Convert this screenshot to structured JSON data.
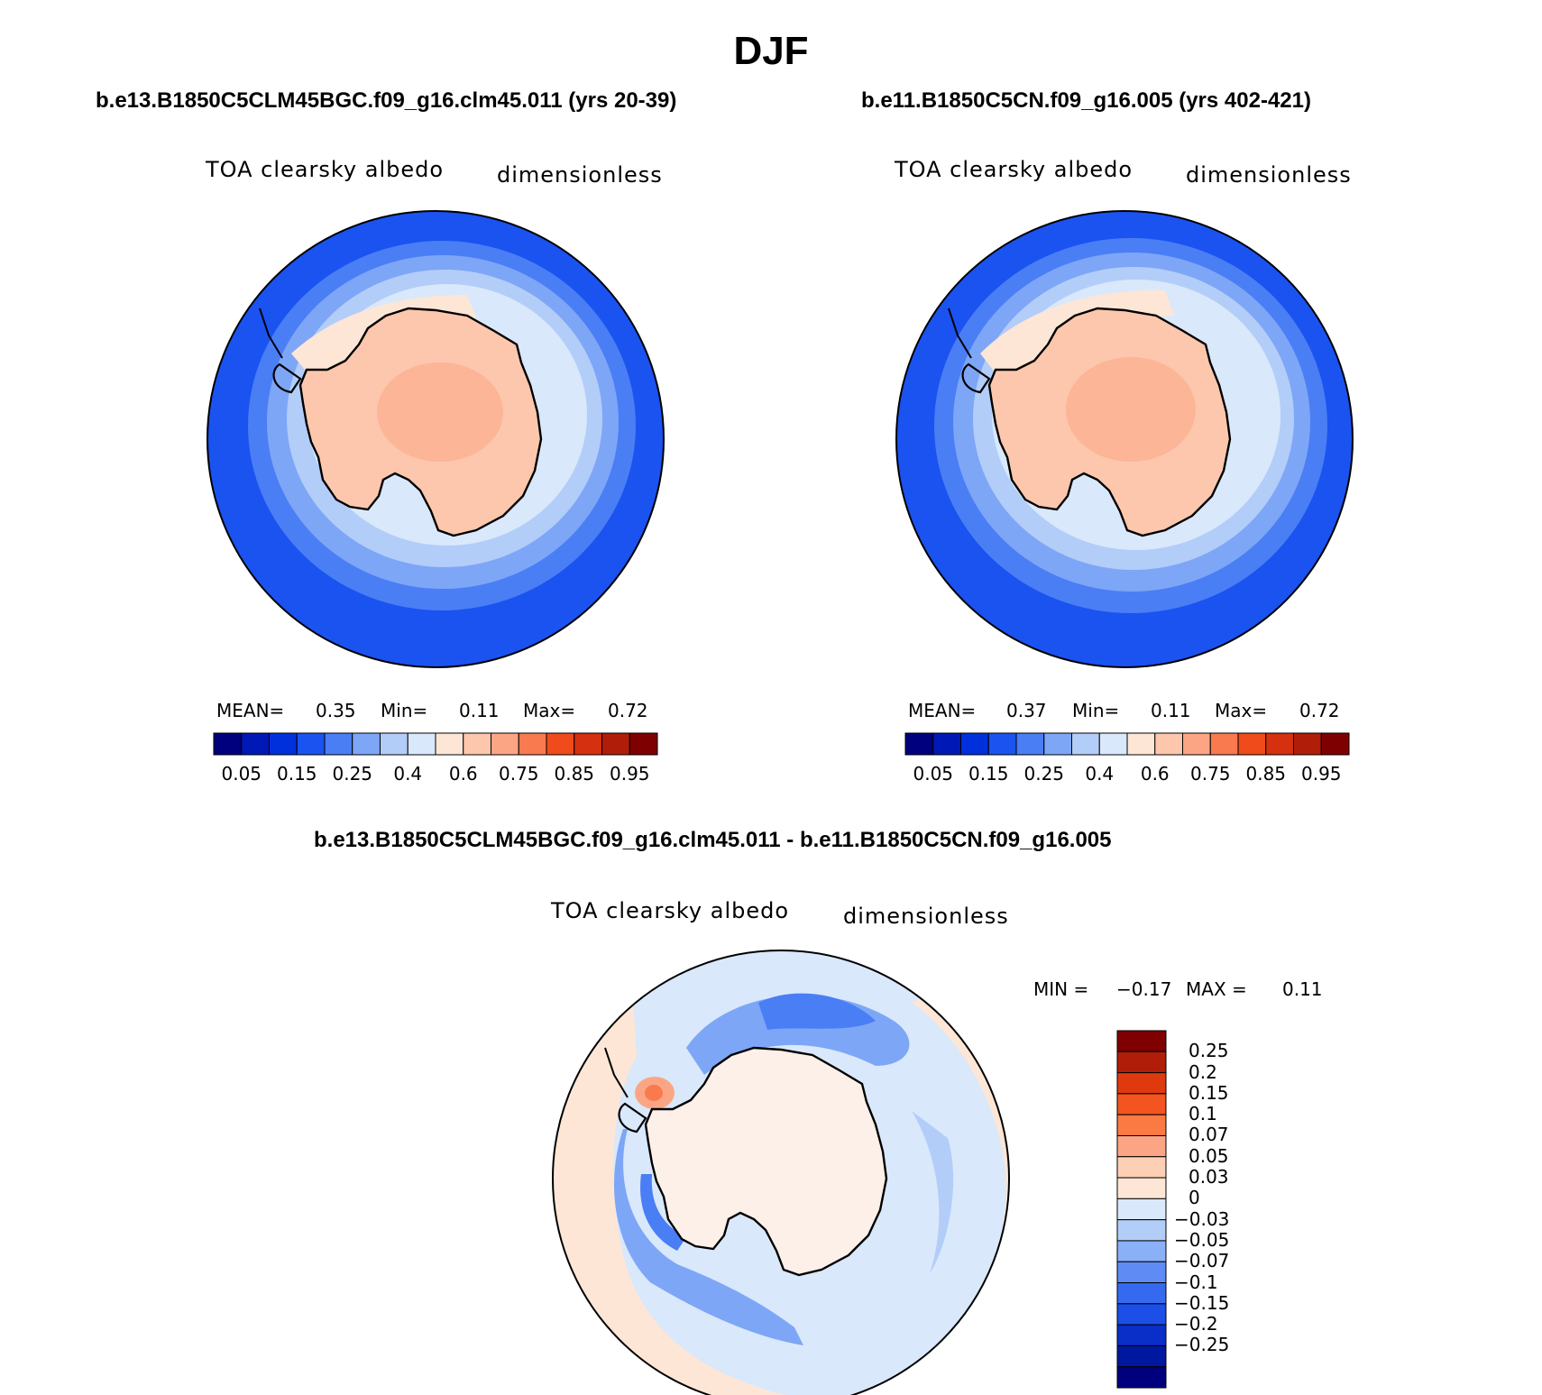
{
  "main_title": "DJF",
  "panels": [
    {
      "case_title": "b.e13.B1850C5CLM45BGC.f09_g16.clm45.011 (yrs 20-39)",
      "variable": "TOA clearsky albedo",
      "units": "dimensionless",
      "mean_label": "MEAN=",
      "mean": "0.35",
      "min_label": "Min=",
      "min": "0.11",
      "max_label": "Max=",
      "max": "0.72"
    },
    {
      "case_title": "b.e11.B1850C5CN.f09_g16.005 (yrs 402-421)",
      "variable": "TOA clearsky albedo",
      "units": "dimensionless",
      "mean_label": "MEAN=",
      "mean": "0.37",
      "min_label": "Min=",
      "min": "0.11",
      "max_label": "Max=",
      "max": "0.72"
    }
  ],
  "diff_panel": {
    "title": "b.e13.B1850C5CLM45BGC.f09_g16.clm45.011 - b.e11.B1850C5CN.f09_g16.005",
    "variable": "TOA clearsky albedo",
    "units": "dimensionless",
    "min_label": "MIN =",
    "min": "−0.17",
    "max_label": "MAX =",
    "max": "0.11"
  },
  "abs_colorbar": {
    "colors": [
      "#00007f",
      "#0018b5",
      "#0030dc",
      "#1a53f0",
      "#4a7ef5",
      "#7ea6f7",
      "#b3cdf9",
      "#d9e8fb",
      "#fde6d6",
      "#fcc7ad",
      "#fba585",
      "#f97a4f",
      "#f04b1b",
      "#d53010",
      "#b01e0a",
      "#7f0000"
    ],
    "tick_labels": [
      "0.05",
      "0.15",
      "0.25",
      "0.4",
      "0.6",
      "0.75",
      "0.85",
      "0.95"
    ]
  },
  "diff_colorbar": {
    "colors": [
      "#7f0000",
      "#b01e0a",
      "#df3a0e",
      "#f35420",
      "#fb7a44",
      "#fca584",
      "#fdcfb5",
      "#fde6d6",
      "#d9e8fb",
      "#b3cdf9",
      "#8ab0f7",
      "#5f8cf4",
      "#356af0",
      "#1c4ee8",
      "#0a2fc8",
      "#0018a0",
      "#00007f"
    ],
    "tick_labels": [
      "0.25",
      "0.2",
      "0.15",
      "0.1",
      "0.07",
      "0.05",
      "0.03",
      "0",
      "−0.03",
      "−0.05",
      "−0.07",
      "−0.1",
      "−0.15",
      "−0.2",
      "−0.25"
    ]
  },
  "map_colors": {
    "ocean_outer": "#1a53f0",
    "ring_1": "#4a7ef5",
    "ring_2": "#7ea6f7",
    "ring_3": "#b3cdf9",
    "ring_4": "#d9e8fb",
    "ring_5": "#fde6d6",
    "land": "#fcc7ad",
    "land_high": "#fba585",
    "diff_bg": "#d9e8fb",
    "diff_pos": "#fde6d6",
    "diff_neg1": "#b3cdf9",
    "diff_neg2": "#7ea6f7",
    "diff_neg3": "#4a7ef5",
    "diff_hot": "#f97a4f"
  }
}
